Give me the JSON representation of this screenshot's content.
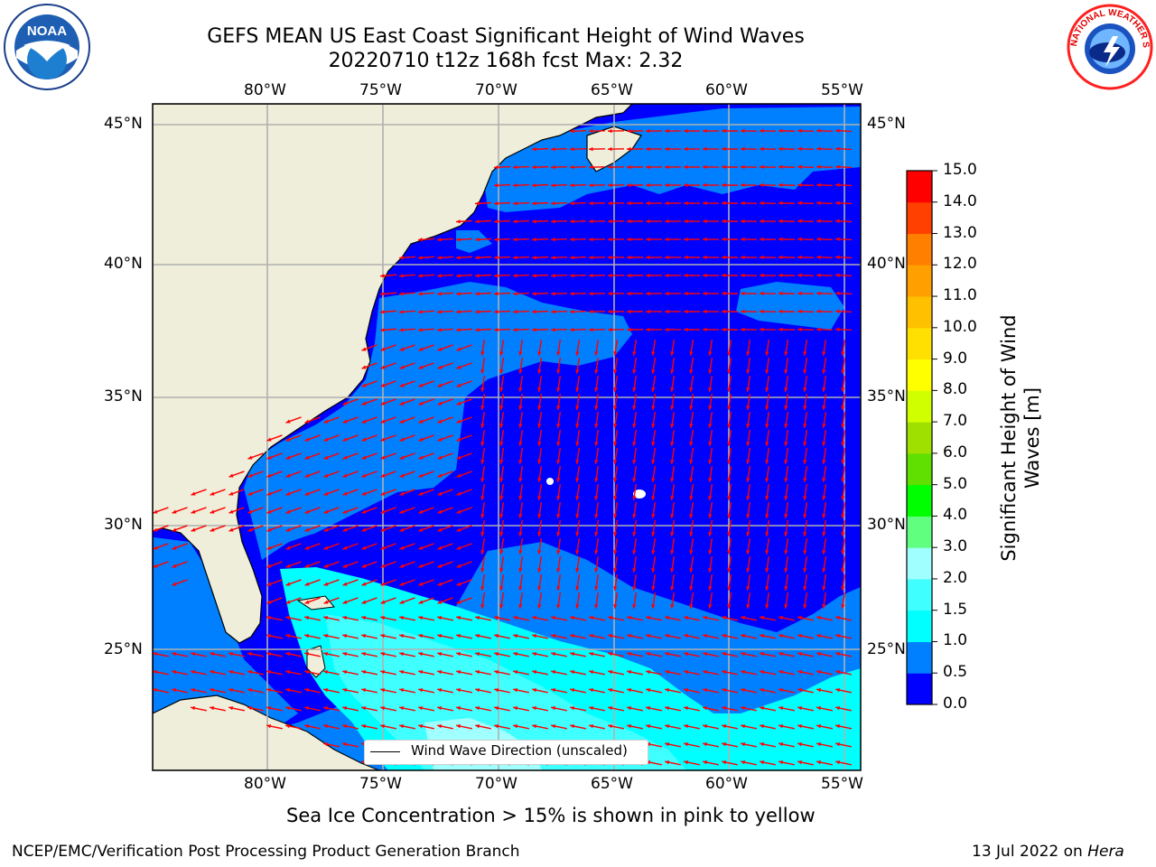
{
  "header": {
    "title_line1": "GEFS MEAN US East Coast Significant Height of Wind Waves",
    "title_line2": "20220710 t12z 168h fcst    Max: 2.32"
  },
  "logos": {
    "left": "NOAA",
    "right": "NATIONAL WEATHER SERVICE"
  },
  "map": {
    "lon_labels": [
      "80°W",
      "75°W",
      "70°W",
      "65°W",
      "60°W",
      "55°W"
    ],
    "lat_labels": [
      "45°N",
      "40°N",
      "35°N",
      "30°N",
      "25°N"
    ],
    "legend_label": "Wind Wave Direction (unscaled)",
    "land_color": "#eeeeda",
    "arrow_color": "#ff0000",
    "grid_color": "#b0b0b0"
  },
  "colorbar": {
    "title_line1": "Significant Height of Wind",
    "title_line2": "Waves [m]",
    "tick_labels": [
      "0.0",
      "0.5",
      "1.0",
      "1.5",
      "2.0",
      "3.0",
      "4.0",
      "5.0",
      "6.0",
      "7.0",
      "8.0",
      "9.0",
      "10.0",
      "11.0",
      "12.0",
      "13.0",
      "14.0",
      "15.0"
    ],
    "colors": [
      "#0000ff",
      "#0080ff",
      "#00ffff",
      "#40ffff",
      "#a0ffff",
      "#60ff80",
      "#00ff00",
      "#60e000",
      "#a0e000",
      "#d0ff00",
      "#ffff00",
      "#ffe000",
      "#ffc000",
      "#ffa000",
      "#ff8000",
      "#ff4000",
      "#ff0000"
    ]
  },
  "footer": {
    "ice_note": "Sea Ice Concentration > 15% is shown in pink to yellow",
    "left": "NCEP/EMC/Verification Post Processing Product Generation Branch",
    "right_date": "13 Jul 2022 on",
    "right_machine": "Hera"
  }
}
